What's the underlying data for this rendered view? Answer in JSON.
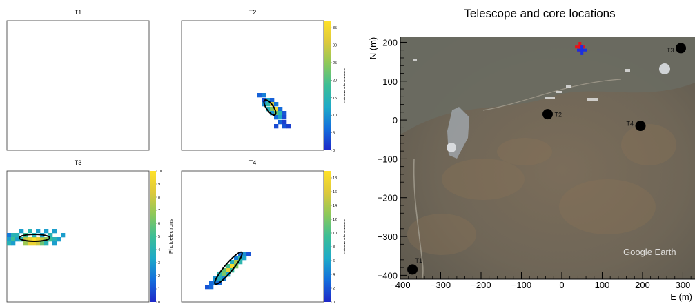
{
  "camera_panels": [
    {
      "title": "T1",
      "colorbar": false,
      "cblabel": "",
      "zmax": 0,
      "ticks": [],
      "pixels": [],
      "ellipse": null
    },
    {
      "title": "T2",
      "colorbar": true,
      "cblabel": "Photoelectrons",
      "zmax": 37,
      "ticks": [
        "0",
        "5",
        "10",
        "15",
        "20",
        "25",
        "30",
        "35"
      ],
      "pixels": [
        [
          110,
          105,
          5
        ],
        [
          116,
          105,
          8
        ],
        [
          116,
          112,
          3
        ],
        [
          122,
          112,
          12
        ],
        [
          128,
          112,
          5
        ],
        [
          116,
          118,
          9
        ],
        [
          122,
          118,
          16
        ],
        [
          128,
          118,
          30
        ],
        [
          134,
          118,
          7
        ],
        [
          122,
          125,
          14
        ],
        [
          128,
          125,
          24
        ],
        [
          134,
          125,
          35
        ],
        [
          140,
          125,
          6
        ],
        [
          128,
          131,
          10
        ],
        [
          134,
          131,
          22
        ],
        [
          140,
          131,
          15
        ],
        [
          146,
          131,
          4
        ],
        [
          134,
          137,
          6
        ],
        [
          140,
          137,
          12
        ],
        [
          146,
          137,
          3
        ],
        [
          140,
          144,
          5
        ],
        [
          146,
          144,
          2
        ],
        [
          134,
          150,
          3
        ],
        [
          146,
          150,
          4
        ],
        [
          152,
          150,
          2
        ]
      ],
      "ellipse": [
        128,
        126,
        5,
        13,
        -35
      ]
    },
    {
      "title": "T3",
      "colorbar": true,
      "cblabel": "Photoelectrons",
      "zmax": 10,
      "ticks": [
        "0",
        "1",
        "2",
        "3",
        "4",
        "5",
        "6",
        "7",
        "8",
        "9",
        "10"
      ],
      "pixels": [
        [
          0,
          90,
          2
        ],
        [
          6,
          90,
          4
        ],
        [
          0,
          96,
          3
        ],
        [
          6,
          96,
          5
        ],
        [
          12,
          96,
          3
        ],
        [
          18,
          96,
          4
        ],
        [
          24,
          96,
          8
        ],
        [
          30,
          96,
          9
        ],
        [
          36,
          96,
          10
        ],
        [
          42,
          96,
          9
        ],
        [
          48,
          96,
          8
        ],
        [
          54,
          96,
          7
        ],
        [
          60,
          96,
          5
        ],
        [
          66,
          96,
          4
        ],
        [
          72,
          96,
          3
        ],
        [
          0,
          102,
          4
        ],
        [
          6,
          102,
          3
        ],
        [
          24,
          102,
          7
        ],
        [
          30,
          102,
          9
        ],
        [
          36,
          102,
          9
        ],
        [
          42,
          102,
          8
        ],
        [
          48,
          102,
          6
        ],
        [
          54,
          102,
          4
        ],
        [
          66,
          102,
          3
        ],
        [
          12,
          90,
          4
        ],
        [
          24,
          90,
          5
        ],
        [
          36,
          90,
          4
        ],
        [
          48,
          90,
          3
        ],
        [
          60,
          90,
          4
        ],
        [
          78,
          90,
          3
        ],
        [
          18,
          84,
          3
        ],
        [
          30,
          84,
          4
        ],
        [
          42,
          84,
          3
        ],
        [
          54,
          84,
          3
        ],
        [
          66,
          84,
          3
        ]
      ],
      "ellipse": [
        40,
        97,
        22,
        5,
        0
      ]
    },
    {
      "title": "T4",
      "colorbar": true,
      "cblabel": "Photoelectrons",
      "zmax": 19,
      "ticks": [
        "0",
        "2",
        "4",
        "6",
        "8",
        "10",
        "12",
        "14",
        "16",
        "18"
      ],
      "pixels": [
        [
          82,
          117,
          3
        ],
        [
          88,
          117,
          5
        ],
        [
          76,
          123,
          4
        ],
        [
          82,
          123,
          9
        ],
        [
          88,
          123,
          6
        ],
        [
          70,
          129,
          7
        ],
        [
          76,
          129,
          14
        ],
        [
          82,
          129,
          8
        ],
        [
          64,
          135,
          10
        ],
        [
          70,
          135,
          18
        ],
        [
          76,
          135,
          12
        ],
        [
          58,
          141,
          11
        ],
        [
          64,
          141,
          17
        ],
        [
          70,
          141,
          9
        ],
        [
          52,
          147,
          8
        ],
        [
          58,
          147,
          12
        ],
        [
          64,
          147,
          6
        ],
        [
          46,
          153,
          5
        ],
        [
          52,
          153,
          7
        ],
        [
          58,
          153,
          4
        ],
        [
          40,
          159,
          3
        ],
        [
          46,
          159,
          4
        ],
        [
          52,
          159,
          3
        ],
        [
          94,
          117,
          2
        ],
        [
          34,
          165,
          2
        ],
        [
          40,
          165,
          3
        ]
      ],
      "ellipse": [
        68,
        141,
        6,
        30,
        40
      ]
    }
  ],
  "chart_data": {
    "type": "scatter",
    "title": "Telescope and core locations",
    "xlabel": "E (m)",
    "ylabel": "N (m)",
    "xlim": [
      -400,
      330
    ],
    "ylim": [
      -410,
      215
    ],
    "xticks": [
      -400,
      -300,
      -200,
      -100,
      0,
      100,
      200,
      300
    ],
    "yticks": [
      -400,
      -300,
      -200,
      -100,
      0,
      100,
      200
    ],
    "telescopes": [
      {
        "label": "T1",
        "x": -370,
        "y": -385
      },
      {
        "label": "T2",
        "x": -35,
        "y": 15
      },
      {
        "label": "T3",
        "x": 295,
        "y": 185
      },
      {
        "label": "T4",
        "x": 195,
        "y": -15
      }
    ],
    "core_markers": [
      {
        "kind": "true-core",
        "x": 45,
        "y": 188,
        "color": "#e8121a"
      },
      {
        "kind": "reconstructed-core",
        "x": 50,
        "y": 180,
        "color": "#1b2fe0"
      }
    ],
    "attribution": "Google Earth",
    "grid": false
  }
}
